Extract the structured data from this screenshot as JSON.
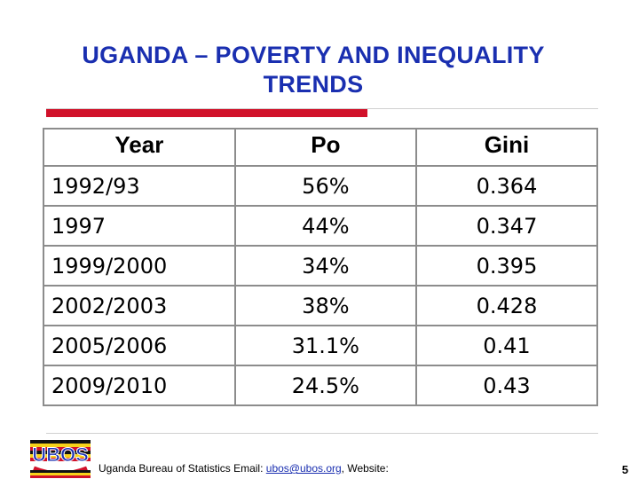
{
  "slide": {
    "title_line1": "UGANDA – POVERTY AND INEQUALITY",
    "title_line2": "TRENDS",
    "page_number": "5"
  },
  "table": {
    "headers": [
      "Year",
      "Po",
      "Gini"
    ],
    "rows": [
      [
        "1992/93",
        "56%",
        "0.364"
      ],
      [
        "1997",
        "44%",
        "0.347"
      ],
      [
        "1999/2000",
        "34%",
        "0.395"
      ],
      [
        "2002/2003",
        "38%",
        "0.428"
      ],
      [
        "2005/2006",
        "31.1%",
        "0.41"
      ],
      [
        "2009/2010",
        "24.5%",
        "0.43"
      ]
    ]
  },
  "footer": {
    "prefix": "Uganda Bureau of Statistics Email: ",
    "email": "ubos@ubos.org",
    "suffix": ", Website:"
  },
  "logo": {
    "text": "UBOS",
    "colors": {
      "black": "#111111",
      "yellow": "#f7d21a",
      "red": "#d1112a",
      "blue": "#1a2fb0"
    }
  },
  "colors": {
    "title": "#1a2fb0",
    "accent_bar": "#d1112a",
    "grid": "#8c8c8c"
  }
}
